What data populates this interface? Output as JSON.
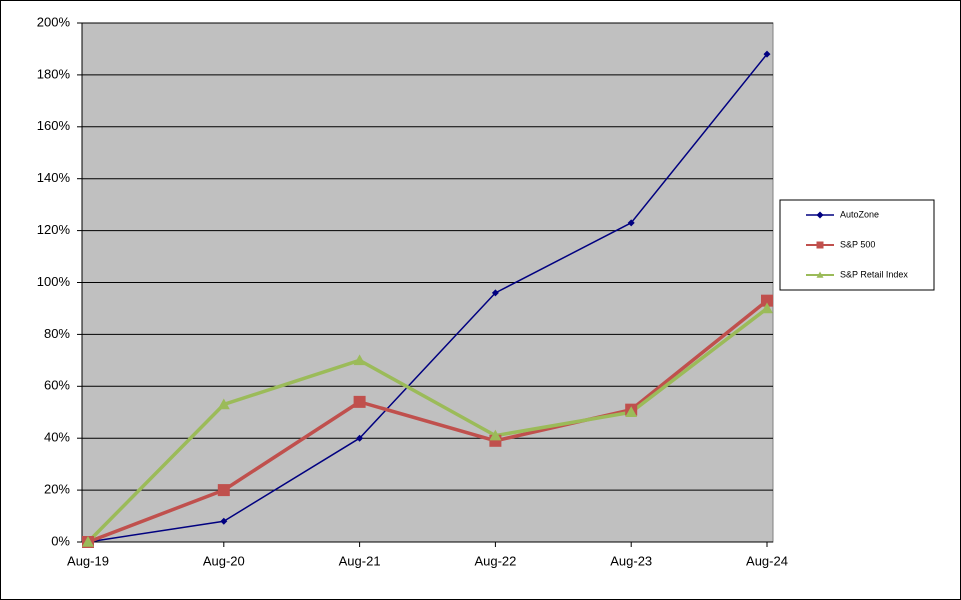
{
  "chart_data": {
    "type": "line",
    "categories": [
      "Aug-19",
      "Aug-20",
      "Aug-21",
      "Aug-22",
      "Aug-23",
      "Aug-24"
    ],
    "series": [
      {
        "name": "AutoZone",
        "color": "#000080",
        "marker": "diamond",
        "line_width": 1.5,
        "values": [
          0,
          8,
          40,
          96,
          123,
          188
        ]
      },
      {
        "name": "S&P 500",
        "color": "#c0504d",
        "marker": "square",
        "line_width": 3.5,
        "values": [
          0,
          20,
          54,
          39,
          51,
          93
        ]
      },
      {
        "name": "S&P Retail Index",
        "color": "#9bbb59",
        "marker": "triangle",
        "line_width": 3.5,
        "values": [
          0,
          53,
          70,
          41,
          50,
          90
        ]
      }
    ],
    "ylim": [
      0,
      200
    ],
    "yticks": [
      {
        "value": 0,
        "label": "0%"
      },
      {
        "value": 20,
        "label": "20%"
      },
      {
        "value": 40,
        "label": "40%"
      },
      {
        "value": 60,
        "label": "60%"
      },
      {
        "value": 80,
        "label": "80%"
      },
      {
        "value": 100,
        "label": "100%"
      },
      {
        "value": 120,
        "label": "120%"
      },
      {
        "value": 140,
        "label": "140%"
      },
      {
        "value": 160,
        "label": "160%"
      },
      {
        "value": 180,
        "label": "180%"
      },
      {
        "value": 200,
        "label": "200%"
      }
    ],
    "grid": true,
    "plot_background": "#c0c0c0",
    "legend": "right"
  }
}
